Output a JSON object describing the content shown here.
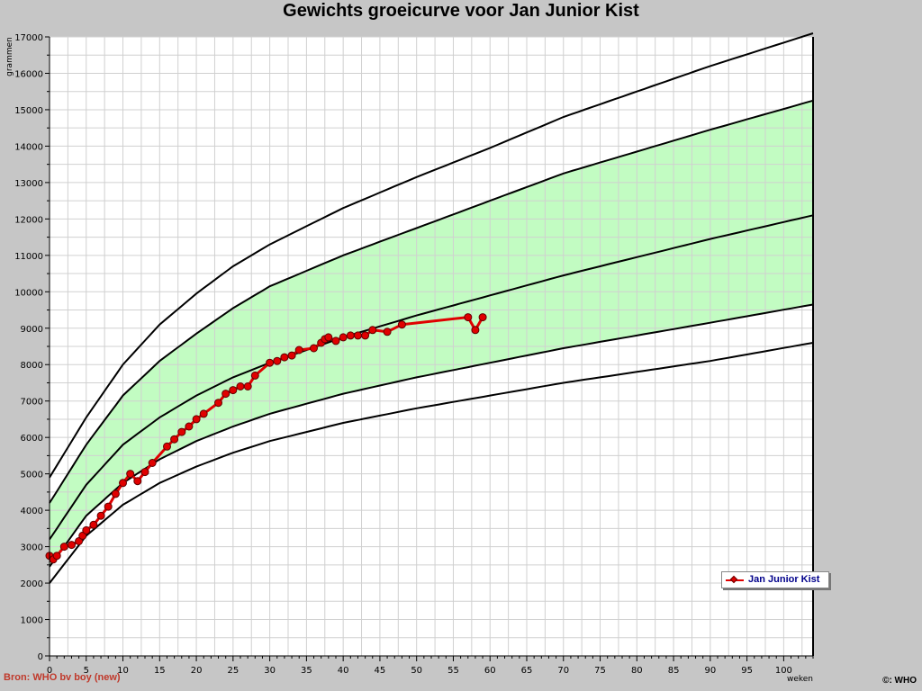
{
  "chart_data": {
    "type": "line",
    "title": "Gewichts groeicurve voor Jan Junior Kist",
    "xlabel": "weken",
    "ylabel": "grammen",
    "xlim": [
      0,
      104
    ],
    "ylim": [
      0,
      17000
    ],
    "x_ticks": [
      0,
      5,
      10,
      15,
      20,
      25,
      30,
      35,
      40,
      45,
      50,
      55,
      60,
      65,
      70,
      75,
      80,
      85,
      90,
      95,
      100
    ],
    "y_ticks": [
      0,
      1000,
      2000,
      3000,
      4000,
      5000,
      6000,
      7000,
      8000,
      9000,
      10000,
      11000,
      12000,
      13000,
      14000,
      15000,
      16000,
      17000
    ],
    "grid": true,
    "colors": {
      "band": "#c2fcc2",
      "series": "#e00000",
      "reference": "#000000",
      "plot_bg": "#ffffff",
      "page_bg": "#c6c6c6"
    },
    "reference_curves": [
      {
        "x": [
          0,
          5,
          10,
          15,
          20,
          25,
          30,
          40,
          50,
          60,
          70,
          80,
          90,
          104
        ],
        "y": [
          2000,
          3300,
          4150,
          4750,
          5200,
          5580,
          5900,
          6400,
          6800,
          7150,
          7500,
          7800,
          8100,
          8600
        ]
      },
      {
        "x": [
          0,
          5,
          10,
          15,
          20,
          25,
          30,
          40,
          50,
          60,
          70,
          80,
          90,
          104
        ],
        "y": [
          2450,
          3850,
          4750,
          5400,
          5900,
          6300,
          6650,
          7200,
          7650,
          8050,
          8450,
          8800,
          9150,
          9650
        ]
      },
      {
        "x": [
          0,
          5,
          10,
          15,
          20,
          25,
          30,
          40,
          50,
          60,
          70,
          80,
          90,
          104
        ],
        "y": [
          3200,
          4700,
          5800,
          6550,
          7150,
          7650,
          8050,
          8750,
          9350,
          9900,
          10450,
          10950,
          11450,
          12100
        ]
      },
      {
        "x": [
          0,
          5,
          10,
          15,
          20,
          25,
          30,
          40,
          50,
          60,
          70,
          80,
          90,
          104
        ],
        "y": [
          4200,
          5800,
          7150,
          8100,
          8850,
          9550,
          10150,
          11000,
          11750,
          12500,
          13250,
          13850,
          14450,
          15250
        ]
      },
      {
        "x": [
          0,
          5,
          10,
          15,
          20,
          25,
          30,
          40,
          50,
          60,
          70,
          80,
          90,
          104
        ],
        "y": [
          4900,
          6550,
          8000,
          9100,
          9950,
          10700,
          11300,
          12300,
          13150,
          13950,
          14800,
          15500,
          16200,
          17100
        ]
      }
    ],
    "band": {
      "lower_curve": 1,
      "upper_curve": 3
    },
    "series": [
      {
        "name": "Jan Junior Kist",
        "x": [
          0,
          0.5,
          1,
          2,
          3,
          4,
          4.5,
          5,
          6,
          7,
          8,
          9,
          10,
          11,
          12,
          13,
          14,
          16,
          17,
          18,
          19,
          20,
          21,
          23,
          24,
          25,
          26,
          27,
          28,
          30,
          31,
          32,
          33,
          34,
          36,
          37,
          37.5,
          38,
          39,
          40,
          41,
          42,
          43,
          44,
          46,
          48,
          57,
          58,
          59
        ],
        "y": [
          2750,
          2650,
          2750,
          3000,
          3050,
          3150,
          3300,
          3450,
          3600,
          3850,
          4100,
          4450,
          4750,
          5000,
          4800,
          5050,
          5300,
          5750,
          5950,
          6150,
          6300,
          6500,
          6650,
          6950,
          7200,
          7300,
          7400,
          7400,
          7700,
          8050,
          8100,
          8200,
          8250,
          8400,
          8450,
          8600,
          8700,
          8750,
          8650,
          8750,
          8800,
          8800,
          8800,
          8950,
          8900,
          9100,
          9300,
          8950,
          9300
        ]
      }
    ]
  },
  "footer": {
    "source": "Bron: WHO bv boy (new)",
    "copyright": "©: WHO"
  },
  "legend": {
    "label": "Jan Junior Kist"
  }
}
